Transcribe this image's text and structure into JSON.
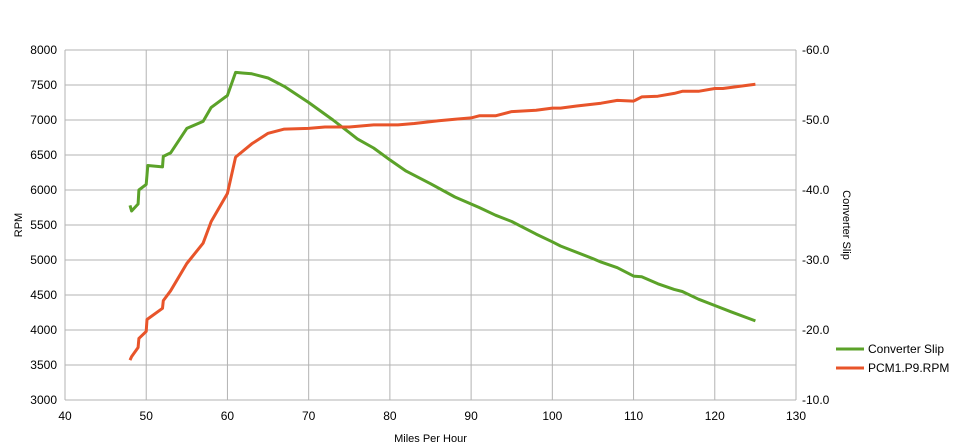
{
  "chart_data": {
    "type": "line",
    "xlabel": "Miles Per Hour",
    "ylabel_left": "RPM",
    "ylabel_right": "Converter Slip",
    "xlim": [
      40,
      130
    ],
    "xticks": [
      40,
      50,
      60,
      70,
      80,
      90,
      100,
      110,
      120,
      130
    ],
    "ylim_left": [
      3000,
      8000
    ],
    "yticks_left": [
      3000,
      3500,
      4000,
      4500,
      5000,
      5500,
      6000,
      6500,
      7000,
      7500,
      8000
    ],
    "ylim_right": [
      -10,
      -60
    ],
    "yticks_right": [
      "-10.0",
      "-20.0",
      "-30.0",
      "-40.0",
      "-50.0",
      "-60.0"
    ],
    "grid": true,
    "legend_position": "right",
    "series": [
      {
        "name": "Converter Slip",
        "axis": "right",
        "color": "#5ba229",
        "points": [
          [
            48,
            -37.8
          ],
          [
            48.2,
            -37.0
          ],
          [
            49,
            -38.0
          ],
          [
            49.1,
            -40.0
          ],
          [
            50,
            -40.8
          ],
          [
            50.2,
            -43.5
          ],
          [
            52,
            -43.3
          ],
          [
            52.1,
            -44.8
          ],
          [
            53,
            -45.3
          ],
          [
            55,
            -48.8
          ],
          [
            57,
            -49.8
          ],
          [
            58,
            -51.8
          ],
          [
            60,
            -53.5
          ],
          [
            61,
            -56.8
          ],
          [
            62,
            -56.7
          ],
          [
            63,
            -56.6
          ],
          [
            65,
            -56.0
          ],
          [
            67,
            -54.8
          ],
          [
            70,
            -52.5
          ],
          [
            73,
            -50.0
          ],
          [
            75,
            -48.2
          ],
          [
            76,
            -47.3
          ],
          [
            78,
            -46.0
          ],
          [
            80,
            -44.3
          ],
          [
            82,
            -42.7
          ],
          [
            85,
            -40.9
          ],
          [
            88,
            -39.0
          ],
          [
            90,
            -38.0
          ],
          [
            91,
            -37.5
          ],
          [
            93,
            -36.4
          ],
          [
            95,
            -35.5
          ],
          [
            98,
            -33.7
          ],
          [
            100,
            -32.6
          ],
          [
            101,
            -32.0
          ],
          [
            105,
            -30.2
          ],
          [
            106,
            -29.7
          ],
          [
            108,
            -28.9
          ],
          [
            110,
            -27.7
          ],
          [
            111,
            -27.6
          ],
          [
            113,
            -26.6
          ],
          [
            115,
            -25.8
          ],
          [
            116,
            -25.5
          ],
          [
            118,
            -24.4
          ],
          [
            120,
            -23.5
          ],
          [
            122,
            -22.6
          ],
          [
            125,
            -21.3
          ]
        ]
      },
      {
        "name": "PCM1.P9.RPM",
        "axis": "left",
        "color": "#e8542a",
        "points": [
          [
            48,
            3570
          ],
          [
            48.2,
            3620
          ],
          [
            49,
            3750
          ],
          [
            49.1,
            3880
          ],
          [
            50,
            3980
          ],
          [
            50.1,
            4150
          ],
          [
            52,
            4310
          ],
          [
            52.1,
            4420
          ],
          [
            53,
            4560
          ],
          [
            55,
            4950
          ],
          [
            57,
            5240
          ],
          [
            58,
            5550
          ],
          [
            60,
            5950
          ],
          [
            61,
            6470
          ],
          [
            63,
            6660
          ],
          [
            65,
            6810
          ],
          [
            67,
            6870
          ],
          [
            70,
            6880
          ],
          [
            72,
            6900
          ],
          [
            75,
            6900
          ],
          [
            78,
            6930
          ],
          [
            81,
            6930
          ],
          [
            83,
            6950
          ],
          [
            86,
            6990
          ],
          [
            88,
            7010
          ],
          [
            90,
            7030
          ],
          [
            91,
            7060
          ],
          [
            93,
            7060
          ],
          [
            95,
            7120
          ],
          [
            98,
            7140
          ],
          [
            100,
            7170
          ],
          [
            101,
            7170
          ],
          [
            103,
            7200
          ],
          [
            106,
            7240
          ],
          [
            108,
            7280
          ],
          [
            110,
            7270
          ],
          [
            111,
            7330
          ],
          [
            113,
            7340
          ],
          [
            115,
            7380
          ],
          [
            116,
            7410
          ],
          [
            118,
            7410
          ],
          [
            120,
            7450
          ],
          [
            121,
            7450
          ],
          [
            123,
            7480
          ],
          [
            125,
            7510
          ]
        ]
      }
    ]
  }
}
